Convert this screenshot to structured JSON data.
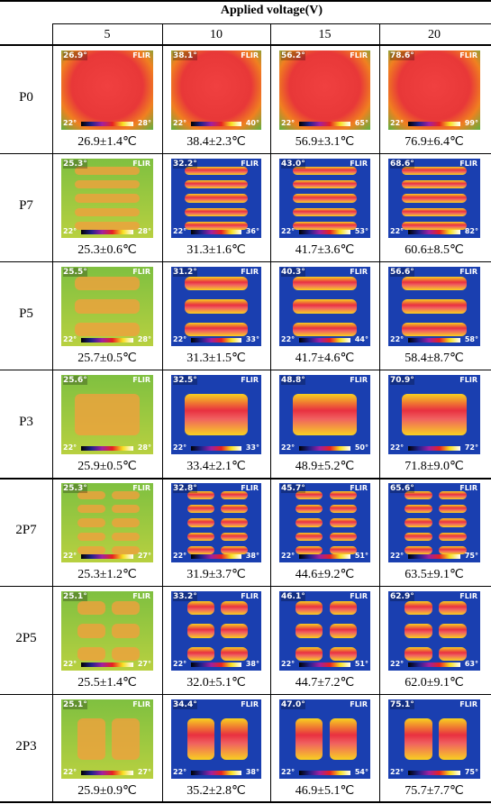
{
  "header": {
    "title": "Applied voltage(V)",
    "columns": [
      "5",
      "10",
      "15",
      "20"
    ]
  },
  "camera_logo": "FLIR",
  "rows": [
    {
      "label": "P0",
      "cells": [
        {
          "max": "26.9°",
          "scale_min": "22°",
          "scale_max": "28°",
          "caption": "26.9±1.4℃"
        },
        {
          "max": "38.1°",
          "scale_min": "22°",
          "scale_max": "40°",
          "caption": "38.4±2.3℃"
        },
        {
          "max": "56.2°",
          "scale_min": "22°",
          "scale_max": "65°",
          "caption": "56.9±3.1℃"
        },
        {
          "max": "78.6°",
          "scale_min": "22°",
          "scale_max": "99°",
          "caption": "76.9±6.4℃"
        }
      ]
    },
    {
      "label": "P7",
      "cells": [
        {
          "max": "25.3°",
          "scale_min": "22°",
          "scale_max": "28°",
          "caption": "25.3±0.6℃"
        },
        {
          "max": "32.2°",
          "scale_min": "22°",
          "scale_max": "36°",
          "caption": "31.3±1.6℃"
        },
        {
          "max": "43.0°",
          "scale_min": "22°",
          "scale_max": "53°",
          "caption": "41.7±3.6℃"
        },
        {
          "max": "68.6°",
          "scale_min": "22°",
          "scale_max": "82°",
          "caption": "60.6±8.5℃"
        }
      ]
    },
    {
      "label": "P5",
      "cells": [
        {
          "max": "25.5°",
          "scale_min": "22°",
          "scale_max": "28°",
          "caption": "25.7±0.5℃"
        },
        {
          "max": "31.2°",
          "scale_min": "22°",
          "scale_max": "33°",
          "caption": "31.3±1.5℃"
        },
        {
          "max": "40.3°",
          "scale_min": "22°",
          "scale_max": "44°",
          "caption": "41.7±4.6℃"
        },
        {
          "max": "56.6°",
          "scale_min": "22°",
          "scale_max": "58°",
          "caption": "58.4±8.7℃"
        }
      ]
    },
    {
      "label": "P3",
      "cells": [
        {
          "max": "25.6°",
          "scale_min": "22°",
          "scale_max": "28°",
          "caption": "25.9±0.5℃"
        },
        {
          "max": "32.5°",
          "scale_min": "22°",
          "scale_max": "33°",
          "caption": "33.4±2.1℃"
        },
        {
          "max": "48.8°",
          "scale_min": "22°",
          "scale_max": "50°",
          "caption": "48.9±5.2℃"
        },
        {
          "max": "70.9°",
          "scale_min": "22°",
          "scale_max": "72°",
          "caption": "71.8±9.0℃"
        }
      ]
    },
    {
      "label": "2P7",
      "cells": [
        {
          "max": "25.3°",
          "scale_min": "22°",
          "scale_max": "27°",
          "caption": "25.3±1.2℃"
        },
        {
          "max": "32.8°",
          "scale_min": "22°",
          "scale_max": "38°",
          "caption": "31.9±3.7℃"
        },
        {
          "max": "45.7°",
          "scale_min": "22°",
          "scale_max": "51°",
          "caption": "44.6±9.2℃"
        },
        {
          "max": "65.6°",
          "scale_min": "22°",
          "scale_max": "75°",
          "caption": "63.5±9.1℃"
        }
      ]
    },
    {
      "label": "2P5",
      "cells": [
        {
          "max": "25.1°",
          "scale_min": "22°",
          "scale_max": "27°",
          "caption": "25.5±1.4℃"
        },
        {
          "max": "33.2°",
          "scale_min": "22°",
          "scale_max": "38°",
          "caption": "32.0±5.1℃"
        },
        {
          "max": "46.1°",
          "scale_min": "22°",
          "scale_max": "51°",
          "caption": "44.7±7.2℃"
        },
        {
          "max": "62.9°",
          "scale_min": "22°",
          "scale_max": "63°",
          "caption": "62.0±9.1℃"
        }
      ]
    },
    {
      "label": "2P3",
      "cells": [
        {
          "max": "25.1°",
          "scale_min": "22°",
          "scale_max": "27°",
          "caption": "25.9±0.9℃"
        },
        {
          "max": "34.4°",
          "scale_min": "22°",
          "scale_max": "38°",
          "caption": "35.2±2.8℃"
        },
        {
          "max": "47.0°",
          "scale_min": "22°",
          "scale_max": "54°",
          "caption": "46.9±5.1℃"
        },
        {
          "max": "75.1°",
          "scale_min": "22°",
          "scale_max": "75°",
          "caption": "75.7±7.7℃"
        }
      ]
    }
  ]
}
